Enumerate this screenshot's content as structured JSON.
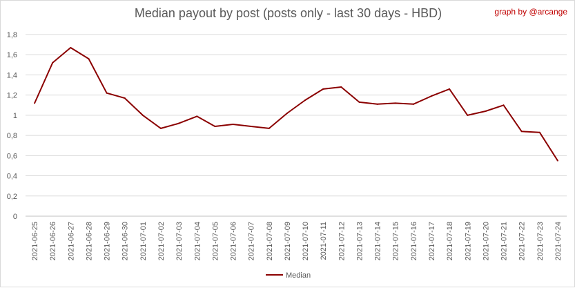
{
  "chart_data": {
    "type": "line",
    "title": "Median payout by post (posts only - last 30 days - HBD)",
    "credit": "graph by @arcange",
    "categories": [
      "2021-06-25",
      "2021-06-26",
      "2021-06-27",
      "2021-06-28",
      "2021-06-29",
      "2021-06-30",
      "2021-07-01",
      "2021-07-02",
      "2021-07-03",
      "2021-07-04",
      "2021-07-05",
      "2021-07-06",
      "2021-07-07",
      "2021-07-08",
      "2021-07-09",
      "2021-07-10",
      "2021-07-11",
      "2021-07-12",
      "2021-07-13",
      "2021-07-14",
      "2021-07-15",
      "2021-07-16",
      "2021-07-17",
      "2021-07-18",
      "2021-07-19",
      "2021-07-20",
      "2021-07-21",
      "2021-07-22",
      "2021-07-23",
      "2021-07-24"
    ],
    "series": [
      {
        "name": "Median",
        "color": "#8b0000",
        "values": [
          1.12,
          1.52,
          1.67,
          1.56,
          1.22,
          1.17,
          1.0,
          0.87,
          0.92,
          0.99,
          0.89,
          0.91,
          0.89,
          0.87,
          1.02,
          1.15,
          1.26,
          1.28,
          1.13,
          1.11,
          1.12,
          1.11,
          1.19,
          1.26,
          1.0,
          1.04,
          1.1,
          0.84,
          0.83,
          0.55
        ]
      }
    ],
    "y_ticks": [
      "0",
      "0,2",
      "0,4",
      "0,6",
      "0,8",
      "1",
      "1,2",
      "1,4",
      "1,6",
      "1,8"
    ],
    "ylim": [
      0,
      1.8
    ],
    "grid": true,
    "legend": "bottom"
  }
}
